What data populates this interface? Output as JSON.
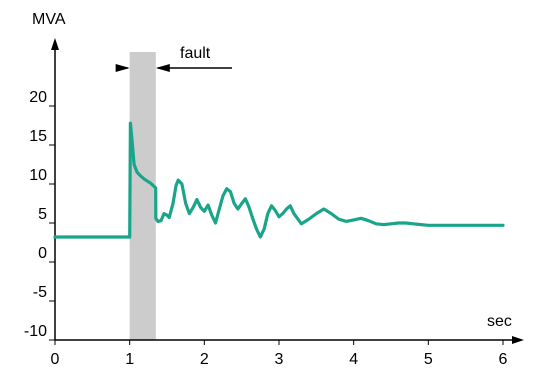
{
  "chart_data": {
    "type": "line",
    "title": "",
    "xlabel": "sec",
    "ylabel": "MVA",
    "xlim": [
      0,
      6
    ],
    "ylim": [
      -10,
      20
    ],
    "x_ticks": [
      0,
      1,
      2,
      3,
      4,
      5,
      6
    ],
    "y_ticks": [
      -10,
      -5,
      0,
      5,
      10,
      15,
      20
    ],
    "grid": false,
    "legend": "none",
    "colors": {
      "series": "#1aa58a",
      "fault_band": "#cccccc",
      "axis": "#000000"
    },
    "series": [
      {
        "values_x": [
          0,
          0.999,
          1.0,
          1.01,
          1.03,
          1.06,
          1.1,
          1.15,
          1.2,
          1.28,
          1.349,
          1.35,
          1.38,
          1.42,
          1.46,
          1.5,
          1.53,
          1.58,
          1.62,
          1.65,
          1.7,
          1.75,
          1.8,
          1.85,
          1.9,
          1.95,
          2.0,
          2.05,
          2.1,
          2.15,
          2.2,
          2.25,
          2.3,
          2.35,
          2.4,
          2.45,
          2.5,
          2.55,
          2.6,
          2.65,
          2.7,
          2.75,
          2.8,
          2.85,
          2.9,
          2.95,
          3.0,
          3.05,
          3.1,
          3.15,
          3.2,
          3.3,
          3.4,
          3.5,
          3.6,
          3.7,
          3.8,
          3.9,
          4.0,
          4.1,
          4.2,
          4.3,
          4.4,
          4.5,
          4.6,
          4.7,
          4.8,
          4.9,
          5.0,
          5.5,
          6.0
        ],
        "values_y": [
          3.2,
          3.2,
          3.2,
          17.8,
          15.8,
          12.5,
          11.5,
          11.0,
          10.6,
          10.1,
          9.5,
          5.6,
          5.2,
          5.3,
          6.2,
          6.0,
          5.7,
          7.5,
          9.8,
          10.5,
          10.0,
          7.5,
          6.2,
          7.0,
          8.0,
          7.0,
          6.5,
          7.3,
          6.0,
          5.0,
          6.8,
          8.5,
          9.4,
          9.0,
          7.5,
          6.8,
          7.5,
          8.1,
          7.0,
          5.5,
          4.2,
          3.2,
          4.2,
          6.2,
          7.2,
          6.6,
          5.8,
          6.2,
          6.8,
          7.2,
          6.2,
          4.9,
          5.5,
          6.2,
          6.8,
          6.2,
          5.5,
          5.2,
          5.4,
          5.6,
          5.3,
          4.9,
          4.8,
          4.9,
          5.0,
          5.0,
          4.9,
          4.8,
          4.7,
          4.7,
          4.7
        ]
      }
    ],
    "annotations": [
      {
        "text": "fault",
        "x_start": 1.0,
        "x_end": 1.35
      }
    ]
  }
}
